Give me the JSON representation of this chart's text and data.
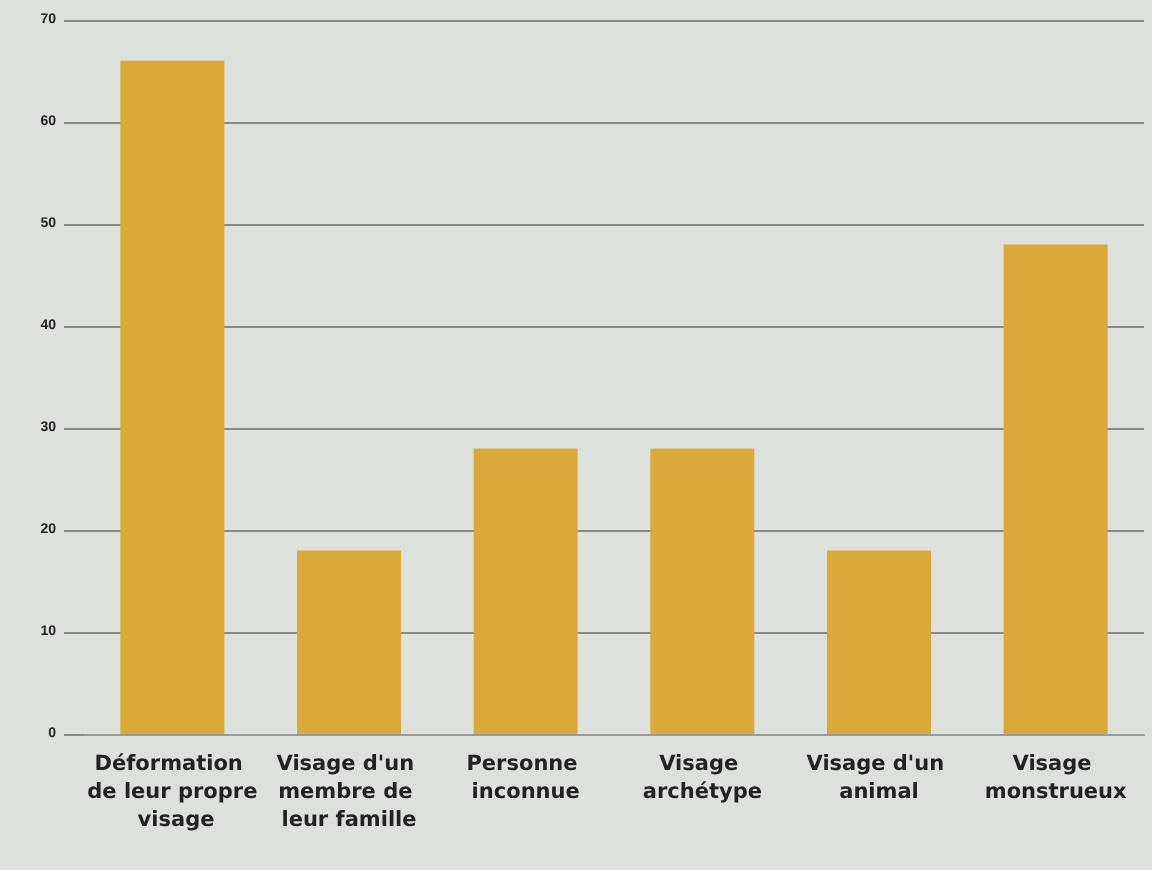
{
  "chart_data": {
    "type": "bar",
    "categories": [
      "Déformation de leur propre visage",
      "Visage d'un membre de leur famille",
      "Personne inconnue",
      "Visage archétype",
      "Visage d'un animal",
      "Visage monstrueux"
    ],
    "values": [
      66,
      18,
      28,
      28,
      18,
      48
    ],
    "color": "#d9a93a",
    "ylim": [
      0,
      70
    ],
    "yticks": [
      0,
      10,
      20,
      30,
      40,
      50,
      60,
      70
    ],
    "grid": "y"
  }
}
